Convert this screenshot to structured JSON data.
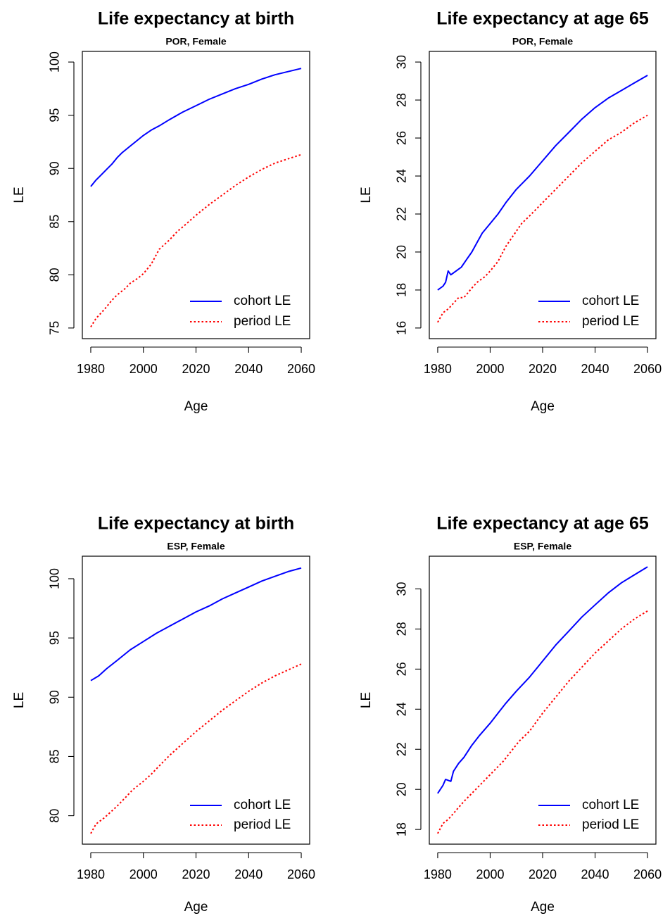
{
  "chart_data": [
    {
      "type": "line",
      "title": "Life expectancy at birth",
      "subtitle": "POR, Female",
      "xlabel": "Age",
      "ylabel": "LE",
      "xlim": [
        1980,
        2060
      ],
      "ylim": [
        75,
        100
      ],
      "xticks": [
        1980,
        2000,
        2020,
        2040,
        2060
      ],
      "yticks": [
        75,
        80,
        85,
        90,
        95,
        100
      ],
      "grid": false,
      "legend_position": "bottom-right",
      "series": [
        {
          "name": "cohort LE",
          "color": "#0000ff",
          "style": "solid",
          "x": [
            1980,
            1982,
            1984,
            1986,
            1988,
            1990,
            1992,
            1995,
            1998,
            2000,
            2003,
            2006,
            2010,
            2015,
            2020,
            2025,
            2030,
            2035,
            2040,
            2045,
            2050,
            2055,
            2060
          ],
          "y": [
            88.3,
            88.9,
            89.4,
            89.9,
            90.4,
            91.0,
            91.5,
            92.1,
            92.7,
            93.1,
            93.6,
            94.0,
            94.6,
            95.3,
            95.9,
            96.5,
            97.0,
            97.5,
            97.9,
            98.4,
            98.8,
            99.1,
            99.4
          ]
        },
        {
          "name": "period LE",
          "color": "#ff0000",
          "style": "dotted",
          "x": [
            1980,
            1982,
            1985,
            1988,
            1990,
            1993,
            1995,
            1998,
            2000,
            2003,
            2006,
            2010,
            2013,
            2015,
            2020,
            2025,
            2030,
            2035,
            2040,
            2045,
            2050,
            2055,
            2060
          ],
          "y": [
            75.1,
            75.9,
            76.7,
            77.6,
            78.1,
            78.7,
            79.2,
            79.7,
            80.1,
            81.0,
            82.4,
            83.3,
            84.1,
            84.5,
            85.6,
            86.6,
            87.5,
            88.4,
            89.2,
            89.9,
            90.5,
            90.9,
            91.3
          ]
        }
      ]
    },
    {
      "type": "line",
      "title": "Life expectancy at age 65",
      "subtitle": "POR, Female",
      "xlabel": "Age",
      "ylabel": "LE",
      "xlim": [
        1980,
        2060
      ],
      "ylim": [
        16,
        30
      ],
      "xticks": [
        1980,
        2000,
        2020,
        2040,
        2060
      ],
      "yticks": [
        16,
        18,
        20,
        22,
        24,
        26,
        28,
        30
      ],
      "grid": false,
      "legend_position": "bottom-right",
      "series": [
        {
          "name": "cohort LE",
          "color": "#0000ff",
          "style": "solid",
          "x": [
            1980,
            1982,
            1983,
            1984,
            1985,
            1987,
            1989,
            1991,
            1993,
            1995,
            1997,
            2000,
            2003,
            2006,
            2010,
            2015,
            2020,
            2025,
            2030,
            2035,
            2040,
            2045,
            2050,
            2055,
            2060
          ],
          "y": [
            18.0,
            18.2,
            18.4,
            19.0,
            18.8,
            19.0,
            19.2,
            19.6,
            20.0,
            20.5,
            21.0,
            21.5,
            22.0,
            22.6,
            23.3,
            24.0,
            24.8,
            25.6,
            26.3,
            27.0,
            27.6,
            28.1,
            28.5,
            28.9,
            29.3
          ]
        },
        {
          "name": "period LE",
          "color": "#ff0000",
          "style": "dotted",
          "x": [
            1980,
            1982,
            1984,
            1986,
            1988,
            1990,
            1993,
            1995,
            1998,
            2000,
            2003,
            2006,
            2009,
            2012,
            2015,
            2020,
            2025,
            2030,
            2035,
            2040,
            2045,
            2050,
            2055,
            2060
          ],
          "y": [
            16.3,
            16.8,
            17.0,
            17.3,
            17.6,
            17.6,
            18.1,
            18.4,
            18.7,
            19.0,
            19.5,
            20.3,
            20.9,
            21.5,
            21.9,
            22.6,
            23.3,
            24.0,
            24.7,
            25.3,
            25.9,
            26.3,
            26.8,
            27.2
          ]
        }
      ]
    },
    {
      "type": "line",
      "title": "Life expectancy at birth",
      "subtitle": "ESP, Female",
      "xlabel": "Age",
      "ylabel": "LE",
      "xlim": [
        1980,
        2060
      ],
      "ylim": [
        78.5,
        101
      ],
      "xticks": [
        1980,
        2000,
        2020,
        2040,
        2060
      ],
      "yticks": [
        80,
        85,
        90,
        95,
        100
      ],
      "grid": false,
      "legend_position": "bottom-right",
      "series": [
        {
          "name": "cohort LE",
          "color": "#0000ff",
          "style": "solid",
          "x": [
            1980,
            1983,
            1986,
            1990,
            1995,
            2000,
            2005,
            2010,
            2015,
            2020,
            2025,
            2030,
            2035,
            2040,
            2045,
            2050,
            2055,
            2060
          ],
          "y": [
            91.4,
            91.8,
            92.4,
            93.1,
            94.0,
            94.7,
            95.4,
            96.0,
            96.6,
            97.2,
            97.7,
            98.3,
            98.8,
            99.3,
            99.8,
            100.2,
            100.6,
            100.9
          ]
        },
        {
          "name": "period LE",
          "color": "#ff0000",
          "style": "dotted",
          "x": [
            1980,
            1982,
            1985,
            1988,
            1990,
            1993,
            1996,
            2000,
            2003,
            2006,
            2010,
            2015,
            2020,
            2025,
            2030,
            2035,
            2040,
            2045,
            2050,
            2055,
            2060
          ],
          "y": [
            78.5,
            79.3,
            79.8,
            80.4,
            80.8,
            81.5,
            82.2,
            82.9,
            83.5,
            84.2,
            85.1,
            86.1,
            87.1,
            88.0,
            88.9,
            89.7,
            90.5,
            91.2,
            91.8,
            92.3,
            92.8
          ]
        }
      ]
    },
    {
      "type": "line",
      "title": "Life expectancy at age 65",
      "subtitle": "ESP, Female",
      "xlabel": "Age",
      "ylabel": "LE",
      "xlim": [
        1980,
        2060
      ],
      "ylim": [
        17.8,
        31.1
      ],
      "xticks": [
        1980,
        2000,
        2020,
        2040,
        2060
      ],
      "yticks": [
        18,
        20,
        22,
        24,
        26,
        28,
        30
      ],
      "grid": false,
      "legend_position": "bottom-right",
      "series": [
        {
          "name": "cohort LE",
          "color": "#0000ff",
          "style": "solid",
          "x": [
            1980,
            1982,
            1983,
            1985,
            1986,
            1988,
            1990,
            1993,
            1996,
            2000,
            2003,
            2006,
            2010,
            2015,
            2020,
            2025,
            2030,
            2035,
            2040,
            2045,
            2050,
            2055,
            2060
          ],
          "y": [
            19.8,
            20.2,
            20.5,
            20.4,
            20.9,
            21.3,
            21.6,
            22.2,
            22.7,
            23.3,
            23.8,
            24.3,
            24.9,
            25.6,
            26.4,
            27.2,
            27.9,
            28.6,
            29.2,
            29.8,
            30.3,
            30.7,
            31.1
          ]
        },
        {
          "name": "period LE",
          "color": "#ff0000",
          "style": "dotted",
          "x": [
            1980,
            1982,
            1984,
            1986,
            1988,
            1990,
            1993,
            1996,
            1999,
            2002,
            2005,
            2008,
            2011,
            2015,
            2020,
            2025,
            2030,
            2035,
            2040,
            2045,
            2050,
            2055,
            2060
          ],
          "y": [
            17.8,
            18.3,
            18.5,
            18.8,
            19.1,
            19.4,
            19.8,
            20.2,
            20.6,
            21.0,
            21.4,
            21.9,
            22.4,
            22.9,
            23.8,
            24.6,
            25.4,
            26.1,
            26.8,
            27.4,
            28.0,
            28.5,
            28.9
          ]
        }
      ]
    }
  ]
}
